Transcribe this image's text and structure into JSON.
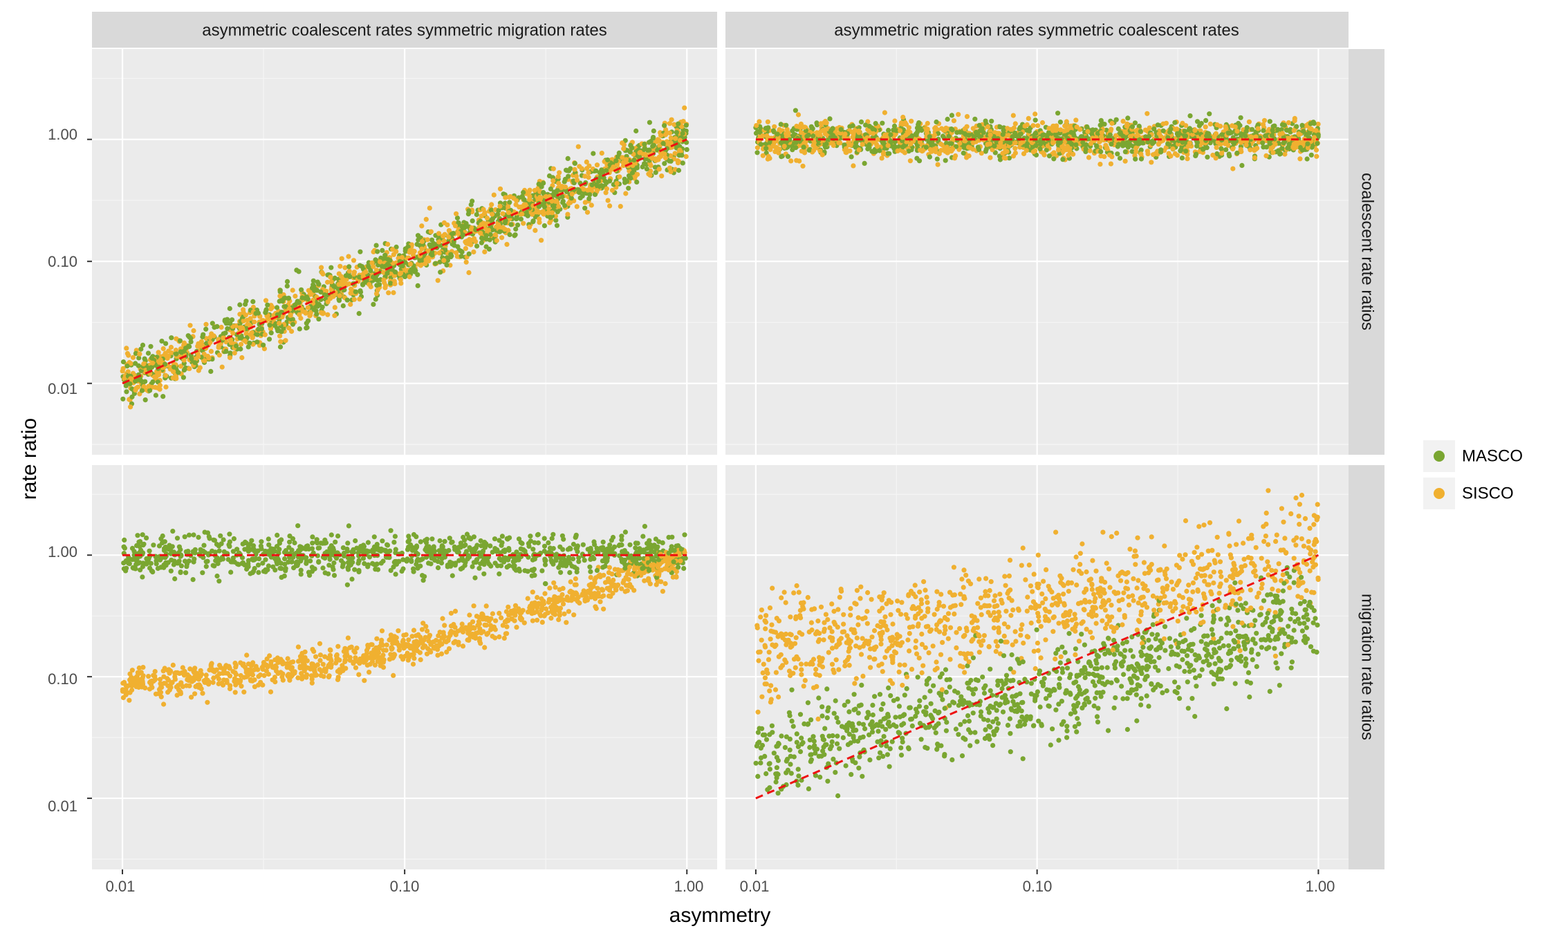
{
  "chart_data": {
    "type": "scatter",
    "xlabel": "asymmetry",
    "ylabel": "rate ratio",
    "x_scale": "log",
    "y_scale": "log",
    "xlim": [
      0.0078,
      1.28
    ],
    "ylim": [
      0.0026,
      5.5
    ],
    "x_ticks": [
      {
        "value": 0.01,
        "label": "0.01"
      },
      {
        "value": 0.1,
        "label": "0.10"
      },
      {
        "value": 1,
        "label": "1.00"
      }
    ],
    "y_ticks": [
      {
        "value": 0.01,
        "label": "0.01"
      },
      {
        "value": 0.1,
        "label": "0.10"
      },
      {
        "value": 1,
        "label": "1.00"
      }
    ],
    "grid": true,
    "legend_position": "right",
    "column_strips": [
      "asymmetric coalescent rates symmetric migration rates",
      "asymmetric migration rates symmetric coalescent rates"
    ],
    "row_strips": [
      "coalescent rate ratios",
      "migration rate ratios"
    ],
    "series": [
      {
        "name": "MASCO",
        "color": "#7aa631"
      },
      {
        "name": "SISCO",
        "color": "#f0b030"
      }
    ],
    "reference_line": {
      "style": "dashed",
      "color": "#ee1111"
    },
    "panels": [
      {
        "row": 0,
        "col": 0,
        "reference": {
          "x": [
            0.01,
            1.0
          ],
          "y": [
            0.01,
            1.0
          ]
        },
        "series": {
          "MASCO": {
            "trend": "y = x",
            "spread_log10": 0.1
          },
          "SISCO": {
            "trend": "y = x",
            "spread_log10": 0.1
          }
        }
      },
      {
        "row": 0,
        "col": 1,
        "reference": {
          "x": [
            0.01,
            1.0
          ],
          "y": [
            1.0,
            1.0
          ]
        },
        "series": {
          "MASCO": {
            "trend": "y = 1",
            "spread_log10": 0.07
          },
          "SISCO": {
            "trend": "y = 1",
            "spread_log10": 0.08
          }
        }
      },
      {
        "row": 1,
        "col": 0,
        "reference": {
          "x": [
            0.01,
            1.0
          ],
          "y": [
            1.0,
            1.0
          ]
        },
        "series": {
          "MASCO": {
            "trend": "y = 1",
            "spread_log10": 0.08
          },
          "SISCO": {
            "trend": "y = 0.08 + 0.92x",
            "spread_log10": 0.07
          }
        }
      },
      {
        "row": 1,
        "col": 1,
        "reference": {
          "x": [
            0.01,
            1.0
          ],
          "y": [
            0.01,
            1.0
          ]
        },
        "series": {
          "MASCO": {
            "trend": "y = x^0.5 * 0.3 (approx.)",
            "spread_log10": 0.18
          },
          "SISCO": {
            "trend": "y = x^0.35 (approx.)",
            "spread_log10": 0.22
          }
        }
      }
    ]
  }
}
